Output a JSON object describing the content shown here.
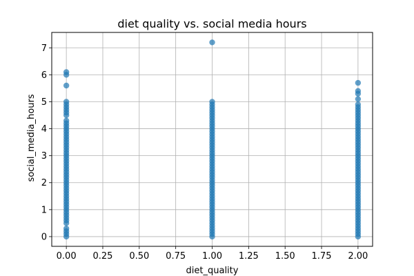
{
  "chart_data": {
    "type": "scatter",
    "title": "diet quality vs. social media hours",
    "xlabel": "diet_quality",
    "ylabel": "social_media_hours",
    "xlim": [
      -0.1,
      2.1
    ],
    "ylim": [
      -0.36,
      7.57
    ],
    "xticks": [
      "0.00",
      "0.25",
      "0.50",
      "0.75",
      "1.00",
      "1.25",
      "1.50",
      "1.75",
      "2.00"
    ],
    "yticks": [
      "0",
      "1",
      "2",
      "3",
      "4",
      "5",
      "6",
      "7"
    ],
    "grid": true,
    "point_color": "#1f77b4",
    "point_alpha": 0.7,
    "series": [
      {
        "x": 0,
        "y": [
          0.0,
          0.1,
          0.2,
          0.3,
          0.5,
          0.6,
          0.7,
          0.8,
          0.9,
          1.0,
          1.1,
          1.2,
          1.3,
          1.4,
          1.5,
          1.6,
          1.7,
          1.8,
          1.9,
          2.0,
          2.1,
          2.2,
          2.3,
          2.4,
          2.5,
          2.6,
          2.7,
          2.8,
          2.9,
          3.0,
          3.1,
          3.2,
          3.3,
          3.4,
          3.5,
          3.6,
          3.7,
          3.8,
          3.9,
          4.0,
          4.1,
          4.2,
          4.3,
          4.5,
          4.6,
          4.7,
          4.8,
          4.9,
          5.0,
          5.6,
          6.0,
          6.1
        ]
      },
      {
        "x": 1,
        "y": [
          0.0,
          0.1,
          0.2,
          0.3,
          0.4,
          0.5,
          0.6,
          0.7,
          0.8,
          0.9,
          1.0,
          1.1,
          1.2,
          1.3,
          1.4,
          1.5,
          1.6,
          1.7,
          1.8,
          1.9,
          2.0,
          2.1,
          2.2,
          2.3,
          2.4,
          2.5,
          2.6,
          2.7,
          2.8,
          2.9,
          3.0,
          3.1,
          3.2,
          3.3,
          3.4,
          3.5,
          3.6,
          3.7,
          3.8,
          3.9,
          4.0,
          4.1,
          4.2,
          4.3,
          4.4,
          4.5,
          4.6,
          4.7,
          4.8,
          4.9,
          5.0,
          7.2
        ]
      },
      {
        "x": 2,
        "y": [
          0.0,
          0.1,
          0.2,
          0.3,
          0.4,
          0.5,
          0.6,
          0.7,
          0.8,
          0.9,
          1.0,
          1.1,
          1.2,
          1.3,
          1.4,
          1.5,
          1.6,
          1.7,
          1.8,
          1.9,
          2.0,
          2.1,
          2.2,
          2.3,
          2.4,
          2.5,
          2.6,
          2.7,
          2.8,
          2.9,
          3.0,
          3.1,
          3.2,
          3.3,
          3.4,
          3.5,
          3.6,
          3.7,
          3.8,
          3.9,
          4.0,
          4.1,
          4.2,
          4.3,
          4.4,
          4.5,
          4.6,
          4.7,
          4.8,
          4.9,
          5.1,
          5.3,
          5.4,
          5.7
        ]
      }
    ]
  }
}
